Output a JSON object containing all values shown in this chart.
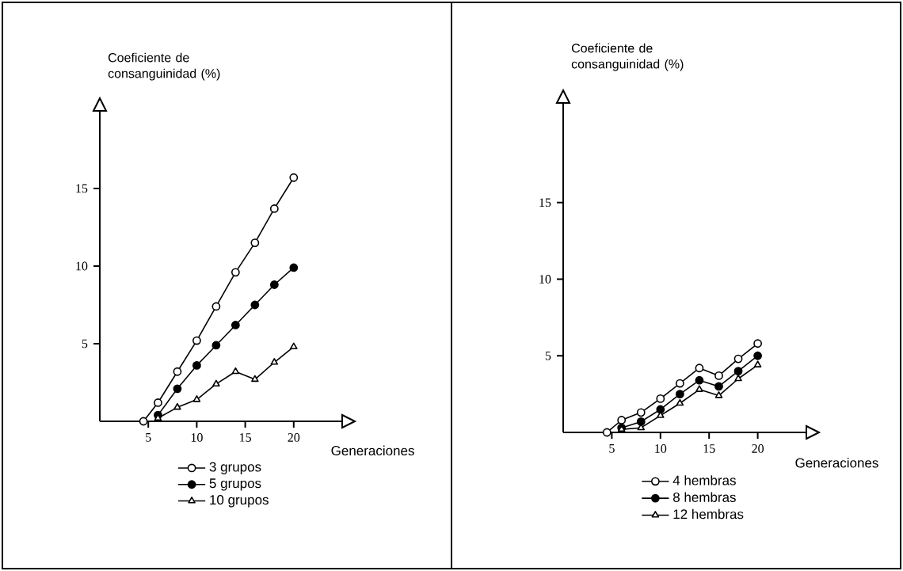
{
  "chart_data": [
    {
      "type": "line",
      "ylabel": "Coeficiente de consanguinidad (%)",
      "xlabel": "Generaciones",
      "xlim": [
        0,
        25
      ],
      "ylim": [
        0,
        20
      ],
      "xticks": [
        5,
        10,
        15,
        20
      ],
      "yticks": [
        5,
        10,
        15
      ],
      "legend": "bottom",
      "series": [
        {
          "name": "3 grupos",
          "color": "#000000",
          "marker": "circle",
          "x": [
            4.5,
            6,
            8,
            10,
            12,
            14,
            16,
            18,
            20
          ],
          "values": [
            0,
            1.2,
            3.2,
            5.2,
            7.4,
            9.6,
            11.5,
            13.7,
            15.7
          ]
        },
        {
          "name": "5 grupos",
          "color": "#000000",
          "marker": "circle",
          "x": [
            6,
            8,
            10,
            12,
            14,
            16,
            18,
            20
          ],
          "values": [
            0.4,
            2.1,
            3.6,
            4.9,
            6.2,
            7.5,
            8.8,
            9.9
          ]
        },
        {
          "name": "10 grupos",
          "color": "#000000",
          "marker": "triangle",
          "x": [
            6,
            8,
            10,
            12,
            14,
            16,
            18,
            20
          ],
          "values": [
            0.2,
            0.9,
            1.4,
            2.4,
            3.2,
            2.7,
            3.8,
            4.8
          ]
        }
      ]
    },
    {
      "type": "line",
      "ylabel": "Coeficiente de consanguinidad (%)",
      "xlabel": "Generaciones",
      "xlim": [
        0,
        25
      ],
      "ylim": [
        0,
        21.5
      ],
      "xticks": [
        5,
        10,
        15,
        20
      ],
      "yticks": [
        5,
        10,
        15
      ],
      "legend": "bottom",
      "series": [
        {
          "name": "4 hembras",
          "color": "#000000",
          "marker": "circle",
          "x": [
            4.5,
            6,
            8,
            10,
            12,
            14,
            16,
            18,
            20
          ],
          "values": [
            0,
            0.8,
            1.3,
            2.2,
            3.2,
            4.2,
            3.7,
            4.8,
            5.8
          ]
        },
        {
          "name": "8 hembras",
          "color": "#000000",
          "marker": "circle",
          "x": [
            6,
            8,
            10,
            12,
            14,
            16,
            18,
            20
          ],
          "values": [
            0.3,
            0.7,
            1.5,
            2.5,
            3.4,
            3.0,
            4.0,
            5.0
          ]
        },
        {
          "name": "12 hembras",
          "color": "#000000",
          "marker": "triangle",
          "x": [
            6,
            8,
            10,
            12,
            14,
            16,
            18,
            20
          ],
          "values": [
            0.2,
            0.3,
            1.1,
            1.9,
            2.8,
            2.4,
            3.5,
            4.4
          ]
        }
      ]
    }
  ]
}
